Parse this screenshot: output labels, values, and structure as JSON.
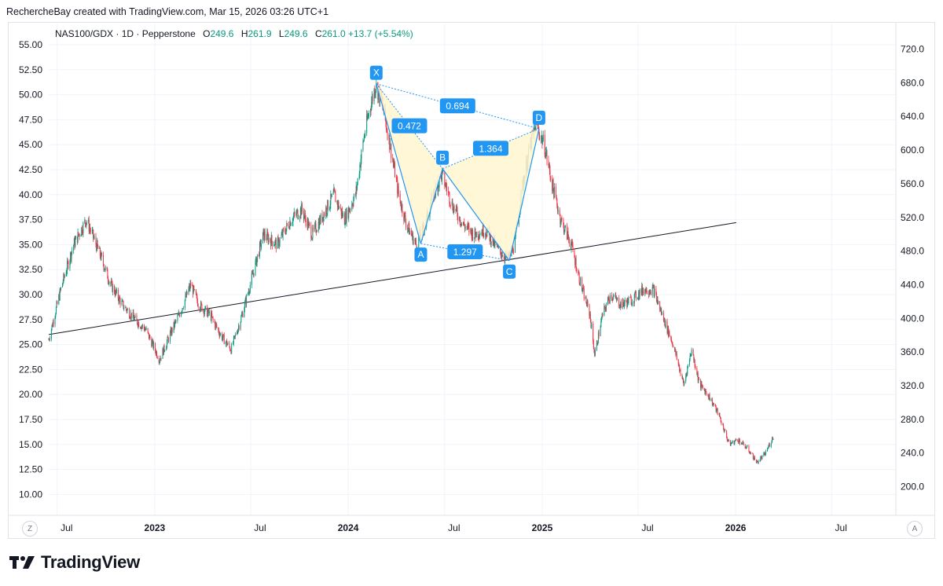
{
  "header": {
    "attribution": "RechercheBay created with TradingView.com, Mar 15, 2026 03:26 UTC+1"
  },
  "legend": {
    "symbol": "NAS100/GDX · 1D · Pepperstone",
    "o_label": "O",
    "o_value": "249.6",
    "h_label": "H",
    "h_value": "261.9",
    "l_label": "L",
    "l_value": "249.6",
    "c_label": "C",
    "c_value": "261.0",
    "change": "+13.7 (+5.54%)"
  },
  "footer": {
    "brand": "TradingView"
  },
  "corners": {
    "left": "Z",
    "right": "A"
  },
  "colors": {
    "up": "#089981",
    "down": "#f23645",
    "pattern_fill": "#fff6cf",
    "pattern_line": "#2196f3",
    "label_bg": "#2196f3",
    "trendline": "#131722"
  },
  "chart_data": {
    "type": "candlestick",
    "title": "NAS100/GDX · 1D · Pepperstone",
    "left_axis": {
      "ticks": [
        "55.00",
        "52.50",
        "50.00",
        "47.50",
        "45.00",
        "42.50",
        "40.00",
        "37.50",
        "35.00",
        "32.50",
        "30.00",
        "27.50",
        "25.00",
        "22.50",
        "20.00",
        "17.50",
        "15.00",
        "12.50",
        "10.00"
      ],
      "range": [
        10,
        55
      ]
    },
    "right_axis": {
      "ticks": [
        "720.0",
        "680.0",
        "640.0",
        "600.0",
        "560.0",
        "520.0",
        "480.0",
        "440.0",
        "400.0",
        "360.0",
        "320.0",
        "280.0",
        "240.0",
        "200.0"
      ],
      "range": [
        200,
        720
      ]
    },
    "x_axis": {
      "ticks": [
        "Jul",
        "2023",
        "Jul",
        "2024",
        "Jul",
        "2025",
        "Jul",
        "2026",
        "Jul"
      ],
      "bold": [
        "2023",
        "2024",
        "2025",
        "2026"
      ]
    },
    "time_range": [
      "2022-06-15",
      "2026-03-13"
    ],
    "price_path": [
      [
        "2022-06-15",
        25.5
      ],
      [
        "2022-07-10",
        31
      ],
      [
        "2022-08-01",
        35
      ],
      [
        "2022-08-25",
        37.5
      ],
      [
        "2022-09-20",
        34
      ],
      [
        "2022-10-10",
        31
      ],
      [
        "2022-11-01",
        29
      ],
      [
        "2022-11-25",
        27.5
      ],
      [
        "2022-12-15",
        26.5
      ],
      [
        "2023-01-10",
        23.5
      ],
      [
        "2023-01-30",
        26
      ],
      [
        "2023-02-20",
        28.5
      ],
      [
        "2023-03-10",
        31
      ],
      [
        "2023-03-25",
        29
      ],
      [
        "2023-04-15",
        28
      ],
      [
        "2023-05-05",
        26
      ],
      [
        "2023-05-25",
        24.5
      ],
      [
        "2023-06-15",
        28
      ],
      [
        "2023-07-05",
        32
      ],
      [
        "2023-07-25",
        36
      ],
      [
        "2023-08-20",
        35
      ],
      [
        "2023-09-15",
        37.5
      ],
      [
        "2023-10-05",
        38.5
      ],
      [
        "2023-10-25",
        36
      ],
      [
        "2023-11-15",
        38
      ],
      [
        "2023-12-05",
        40
      ],
      [
        "2023-12-25",
        37.5
      ],
      [
        "2024-01-15",
        40
      ],
      [
        "2024-01-30",
        45.5
      ],
      [
        "2024-02-10",
        48.5
      ],
      [
        "2024-02-22",
        51
      ],
      [
        "2024-03-05",
        49
      ],
      [
        "2024-03-20",
        45
      ],
      [
        "2024-04-05",
        40
      ],
      [
        "2024-04-20",
        37
      ],
      [
        "2024-05-08",
        35
      ],
      [
        "2024-05-25",
        37
      ],
      [
        "2024-06-10",
        40
      ],
      [
        "2024-06-26",
        42
      ],
      [
        "2024-07-15",
        39
      ],
      [
        "2024-08-05",
        37
      ],
      [
        "2024-08-25",
        36
      ],
      [
        "2024-09-15",
        36.5
      ],
      [
        "2024-10-10",
        34.5
      ],
      [
        "2024-10-28",
        33.5
      ],
      [
        "2024-11-10",
        35
      ],
      [
        "2024-11-25",
        41
      ],
      [
        "2024-12-10",
        45
      ],
      [
        "2024-12-20",
        47
      ],
      [
        "2025-01-05",
        45
      ],
      [
        "2025-01-20",
        41
      ],
      [
        "2025-02-05",
        37.5
      ],
      [
        "2025-02-25",
        35
      ],
      [
        "2025-03-15",
        31
      ],
      [
        "2025-04-01",
        28
      ],
      [
        "2025-04-10",
        24
      ],
      [
        "2025-04-25",
        28
      ],
      [
        "2025-05-10",
        30
      ],
      [
        "2025-05-30",
        29
      ],
      [
        "2025-06-20",
        29.5
      ],
      [
        "2025-07-10",
        30.5
      ],
      [
        "2025-07-30",
        30.5
      ],
      [
        "2025-08-15",
        28
      ],
      [
        "2025-09-05",
        25
      ],
      [
        "2025-09-25",
        21
      ],
      [
        "2025-10-10",
        24.5
      ],
      [
        "2025-10-25",
        21
      ],
      [
        "2025-11-10",
        20
      ],
      [
        "2025-11-30",
        18
      ],
      [
        "2025-12-20",
        15
      ],
      [
        "2026-01-05",
        15.5
      ],
      [
        "2026-01-25",
        14.5
      ],
      [
        "2026-02-10",
        13.2
      ],
      [
        "2026-02-25",
        14
      ],
      [
        "2026-03-13",
        15.8
      ]
    ],
    "harmonic_pattern": {
      "points": [
        {
          "label": "X",
          "date": "2024-02-23",
          "price": 51.1
        },
        {
          "label": "A",
          "date": "2024-05-17",
          "price": 35.1
        },
        {
          "label": "B",
          "date": "2024-06-27",
          "price": 42.6
        },
        {
          "label": "C",
          "date": "2024-10-31",
          "price": 33.4
        },
        {
          "label": "D",
          "date": "2024-12-26",
          "price": 46.6
        }
      ],
      "ratios": [
        {
          "label": "0.472",
          "between": "XB"
        },
        {
          "label": "0.694",
          "between": "XD"
        },
        {
          "label": "1.364",
          "between": "BD"
        },
        {
          "label": "1.297",
          "between": "AC"
        }
      ]
    },
    "trendline": {
      "start": [
        "2022-06-15",
        26.0
      ],
      "end": [
        "2026-01-02",
        37.2
      ]
    }
  }
}
